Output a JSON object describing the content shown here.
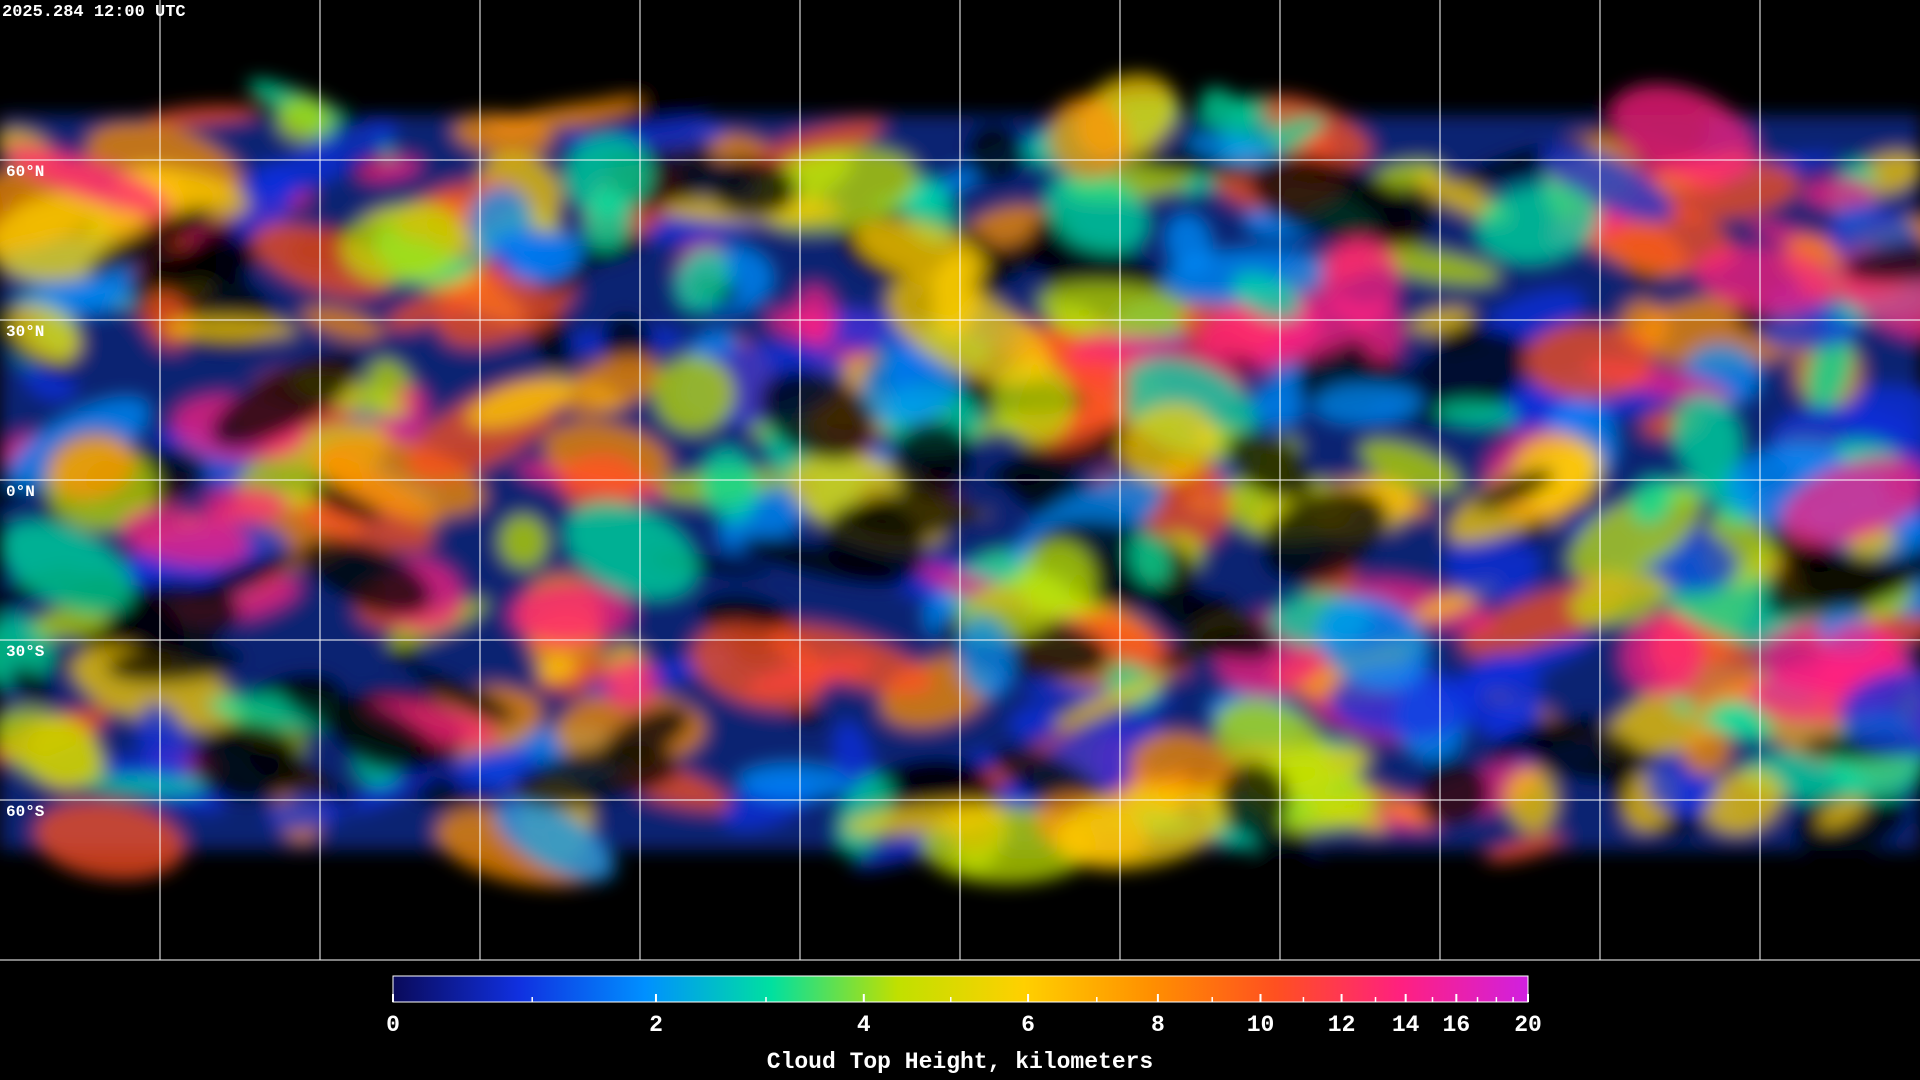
{
  "map": {
    "timestamp": "2025.284 12:00 UTC",
    "xlim": [
      -180,
      180
    ],
    "ylim": [
      -90,
      90
    ],
    "longitude_lines": [
      -150,
      -120,
      -90,
      -60,
      -30,
      0,
      30,
      60,
      90,
      120,
      150
    ],
    "latitude_lines": [
      {
        "value": 60,
        "label": "60°N"
      },
      {
        "value": 30,
        "label": "30°N"
      },
      {
        "value": 0,
        "label": "0°N"
      },
      {
        "value": -30,
        "label": "30°S"
      },
      {
        "value": -60,
        "label": "60°S"
      }
    ]
  },
  "colorbar": {
    "label": "Cloud Top Height, kilometers",
    "range": [
      0,
      20
    ],
    "ticks": [
      0,
      2,
      4,
      6,
      8,
      10,
      12,
      14,
      16,
      20
    ],
    "minor_ticks": [
      1,
      3,
      5,
      7,
      9,
      11,
      13,
      15,
      17,
      18,
      19
    ],
    "colors": [
      "#0a0a5a",
      "#1030e0",
      "#0090ff",
      "#00e0a0",
      "#c0e000",
      "#ffd000",
      "#ff9000",
      "#ff5020",
      "#ff2080",
      "#d020e0"
    ]
  }
}
